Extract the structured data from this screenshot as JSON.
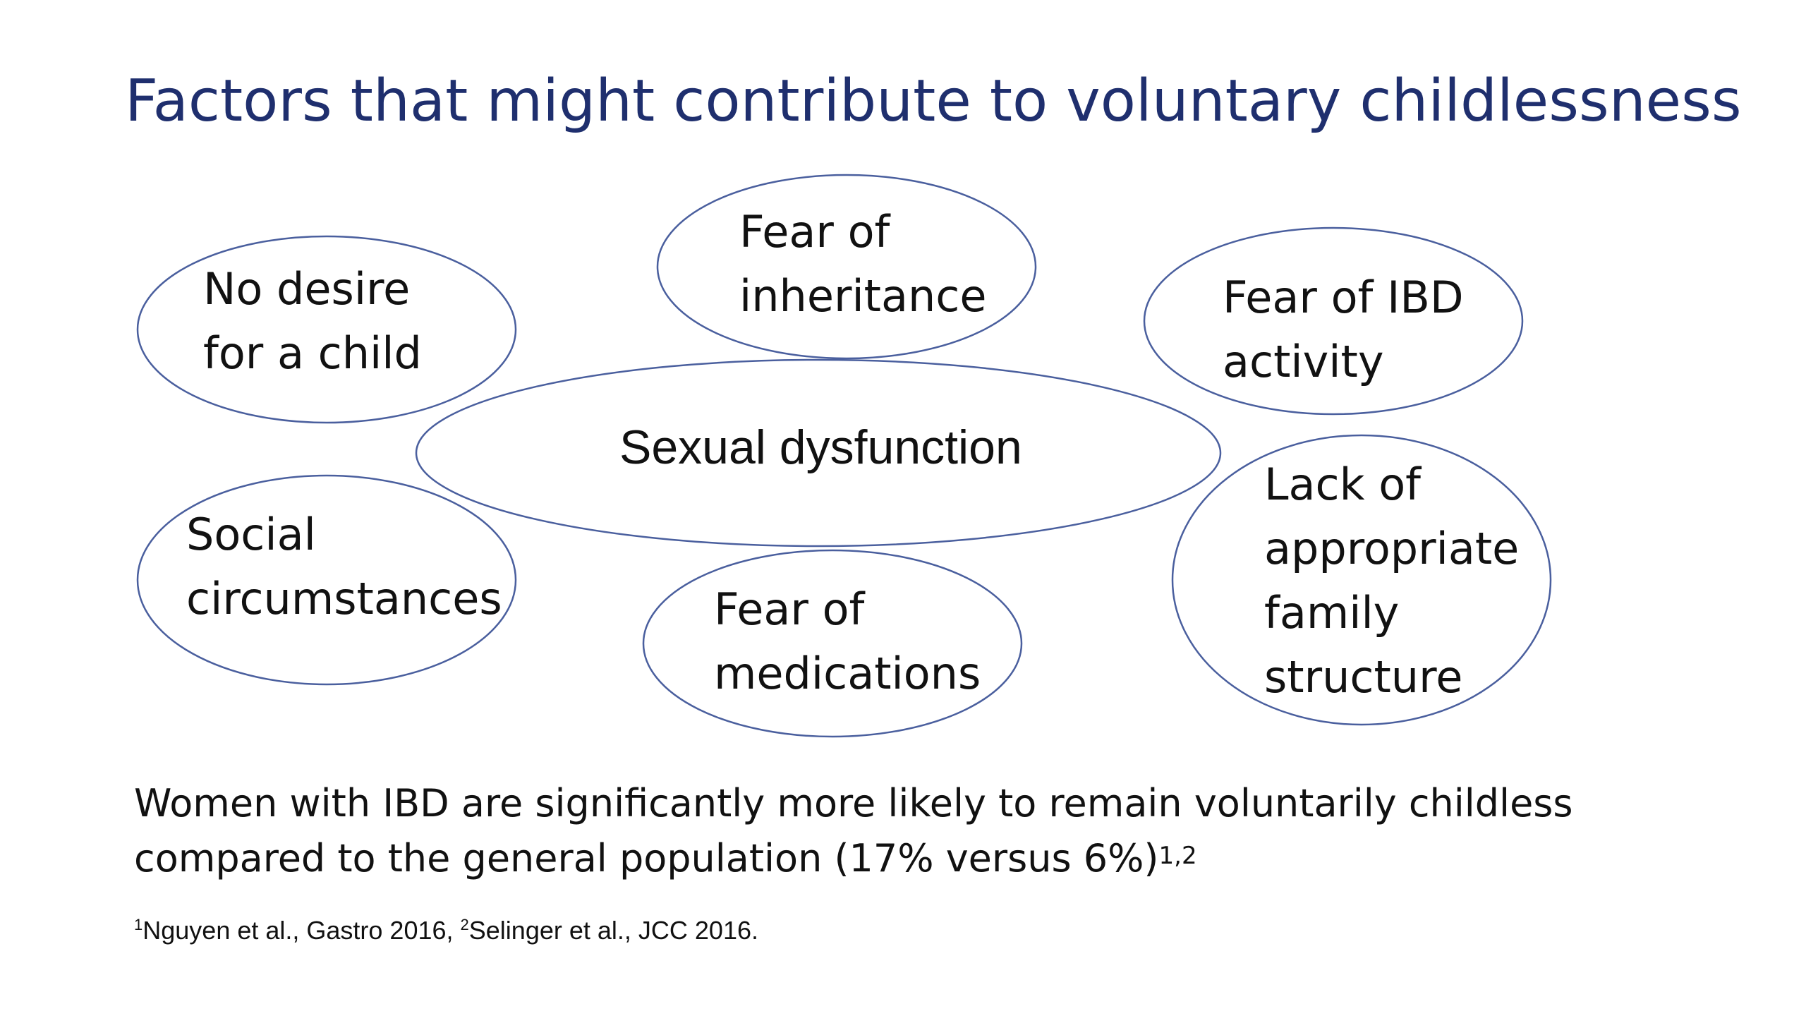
{
  "title": "Factors that might contribute to voluntary childlessness",
  "center": "Sexual dysfunction",
  "bubbles": [
    {
      "line1": "No desire",
      "line2": "for a child"
    },
    {
      "line1": "Fear of",
      "line2": "inheritance"
    },
    {
      "line1": "Fear of IBD",
      "line2": "activity"
    },
    {
      "line1": "Social",
      "line2": "circumstances"
    },
    {
      "line1": "Fear of",
      "line2": "medications"
    },
    {
      "line1": "Lack of",
      "line2": "appropriate",
      "line3": "family",
      "line4": "structure"
    }
  ],
  "note": {
    "line1": "Women with IBD are significantly more likely to remain voluntarily childless",
    "line2": "compared to the general population (17% versus 6%)",
    "sup": "1,2"
  },
  "refs": {
    "sup1": "1",
    "ref1": "Nguyen et al., Gastro 2016, ",
    "sup2": "2",
    "ref2": "Selinger et al., JCC 2016."
  },
  "colors": {
    "title": "#1f2f6e",
    "ellipse_stroke": "#4a5f9e",
    "text": "#111111"
  }
}
